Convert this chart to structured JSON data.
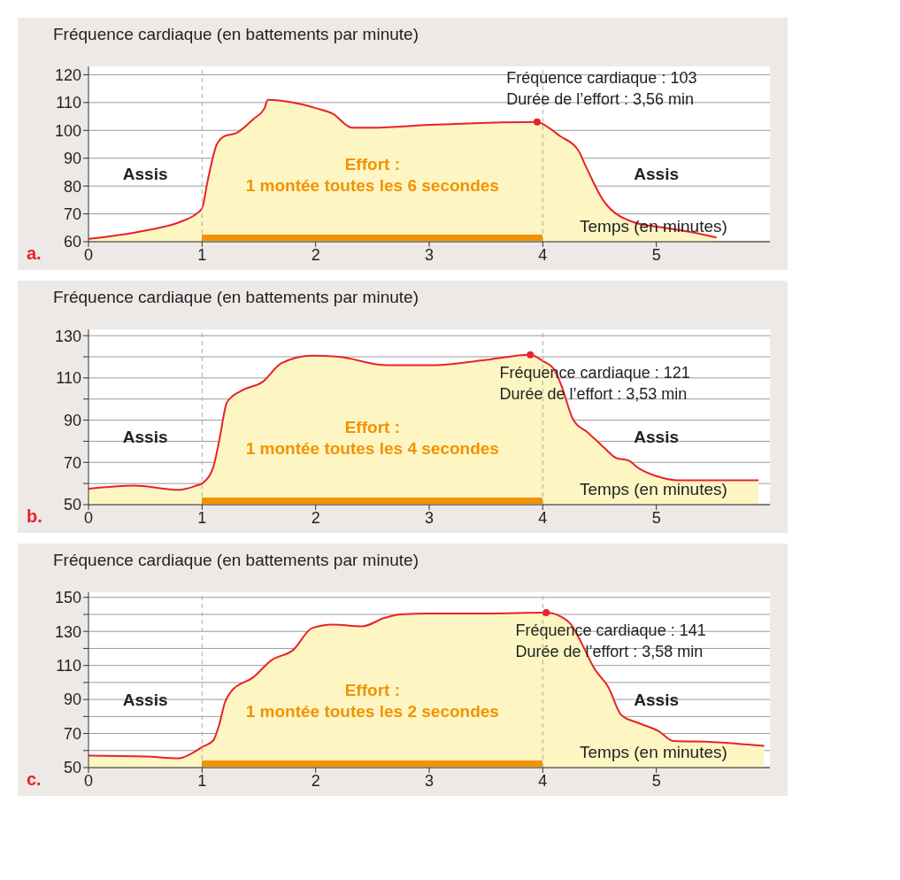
{
  "chart_data": [
    {
      "type": "area",
      "ylabel": "Fréquence cardiaque (en battements par minute)",
      "xlabel": "Temps (en minutes)",
      "x": [
        0,
        0.5,
        0.8,
        0.95,
        1,
        1.05,
        1.13,
        1.2,
        1.3,
        1.45,
        1.55,
        1.58,
        1.8,
        2.0,
        2.15,
        2.32,
        2.5,
        3,
        3.5,
        3.95,
        4.05,
        4.15,
        4.31,
        4.38,
        4.53,
        4.8,
        5.07,
        5.3,
        5.53
      ],
      "series": [
        {
          "color": "#e8222b",
          "values": [
            61,
            64,
            67,
            70,
            72,
            82,
            95,
            98,
            99,
            104,
            108,
            111,
            110,
            108,
            106,
            101,
            101,
            102,
            102.7,
            103,
            101,
            98,
            93,
            87,
            75,
            67,
            65,
            63.5,
            61.5
          ]
        }
      ],
      "xlim": [
        0,
        6
      ],
      "xticks": [
        0,
        1,
        2,
        3,
        4,
        5
      ],
      "ylim": [
        60,
        123
      ],
      "yticks": [
        60,
        70,
        80,
        90,
        100,
        110,
        120
      ],
      "grid": "y",
      "ref_lines": [
        {
          "axis": "x",
          "value": 1,
          "color": "#aaaaaa",
          "line_style": "dashed"
        },
        {
          "axis": "x",
          "value": 4,
          "color": "#aaaaaa",
          "line_style": "dashed"
        }
      ],
      "annotations": [
        {
          "text": "Fréquence cardiaque : 103",
          "x": 3.95,
          "y": 103
        },
        "Durée de l’effort : 3,56 min",
        "Assis",
        "Assis",
        "Effort :",
        "1 montée toutes les 6 secondes",
        "a."
      ]
    },
    {
      "type": "area",
      "ylabel": "Fréquence cardiaque (en battements par minute)",
      "xlabel": "Temps (en minutes)",
      "x": [
        0,
        0.4,
        0.8,
        0.95,
        1,
        1.1,
        1.15,
        1.22,
        1.35,
        1.53,
        1.7,
        1.97,
        2.2,
        2.63,
        3.03,
        3.5,
        3.89,
        4.0,
        4.1,
        4.16,
        4.27,
        4.4,
        4.53,
        4.65,
        4.75,
        4.85,
        5.0,
        5.2,
        5.5,
        5.9
      ],
      "series": [
        {
          "color": "#e8222b",
          "values": [
            57.5,
            59,
            57,
            59,
            60,
            68,
            80,
            98.5,
            104,
            108,
            117,
            120.5,
            120,
            116,
            116,
            118.5,
            121,
            118,
            114,
            107,
            90,
            84,
            77.5,
            72,
            71,
            67,
            63.5,
            61.5,
            61.5,
            61.5
          ]
        }
      ],
      "xlim": [
        0,
        6
      ],
      "xticks": [
        0,
        1,
        2,
        3,
        4,
        5
      ],
      "ylim": [
        50,
        133
      ],
      "yticks": [
        50,
        {
          "value": 60,
          "label": null
        },
        70,
        {
          "value": 80,
          "label": null
        },
        90,
        {
          "value": 100,
          "label": null
        },
        110,
        {
          "value": 120,
          "label": null
        },
        130
      ],
      "grid": "y",
      "ref_lines": [
        {
          "axis": "x",
          "value": 1,
          "color": "#aaaaaa",
          "line_style": "dashed"
        },
        {
          "axis": "x",
          "value": 4,
          "color": "#aaaaaa",
          "line_style": "dashed"
        }
      ],
      "annotations": [
        {
          "text": "Fréquence cardiaque : 121",
          "x": 3.89,
          "y": 121
        },
        "Durée de l’effort : 3,53 min",
        "Assis",
        "Assis",
        "Effort :",
        "1 montée toutes les 4 secondes",
        "b."
      ]
    },
    {
      "type": "area",
      "ylabel": "Fréquence cardiaque (en battements par minute)",
      "xlabel": "Temps (en minutes)",
      "x": [
        0,
        0.5,
        0.8,
        0.9,
        1,
        1.1,
        1.15,
        1.2,
        1.26,
        1.45,
        1.61,
        1.8,
        1.97,
        2.15,
        2.41,
        2.61,
        2.75,
        3.0,
        3.5,
        4.03,
        4.15,
        4.25,
        4.35,
        4.45,
        4.58,
        4.69,
        4.85,
        5.02,
        5.15,
        5.5,
        5.95
      ],
      "series": [
        {
          "color": "#e8222b",
          "values": [
            57,
            56.5,
            55.5,
            58,
            62,
            66,
            75,
            88,
            95,
            103,
            113,
            119,
            132,
            134,
            133,
            138,
            140,
            140.5,
            140.5,
            141,
            139,
            134,
            122,
            108.6,
            97,
            81,
            76,
            71.4,
            65.6,
            65,
            62.7
          ]
        }
      ],
      "xlim": [
        0,
        6
      ],
      "xticks": [
        0,
        1,
        2,
        3,
        4,
        5
      ],
      "ylim": [
        50,
        153
      ],
      "yticks": [
        50,
        {
          "value": 60,
          "label": null
        },
        70,
        {
          "value": 80,
          "label": null
        },
        90,
        {
          "value": 100,
          "label": null
        },
        110,
        {
          "value": 120,
          "label": null
        },
        130,
        {
          "value": 140,
          "label": null
        },
        150
      ],
      "grid": "y",
      "ref_lines": [
        {
          "axis": "x",
          "value": 1,
          "color": "#aaaaaa",
          "line_style": "dashed"
        },
        {
          "axis": "x",
          "value": 4,
          "color": "#aaaaaa",
          "line_style": "dashed"
        }
      ],
      "annotations": [
        {
          "text": "Fréquence cardiaque : 141",
          "x": 4.03,
          "y": 141
        },
        "Durée de l’effort : 3,58 min",
        "Assis",
        "Assis",
        "Effort :",
        "1 montée toutes les 2 secondes",
        "c."
      ]
    }
  ]
}
